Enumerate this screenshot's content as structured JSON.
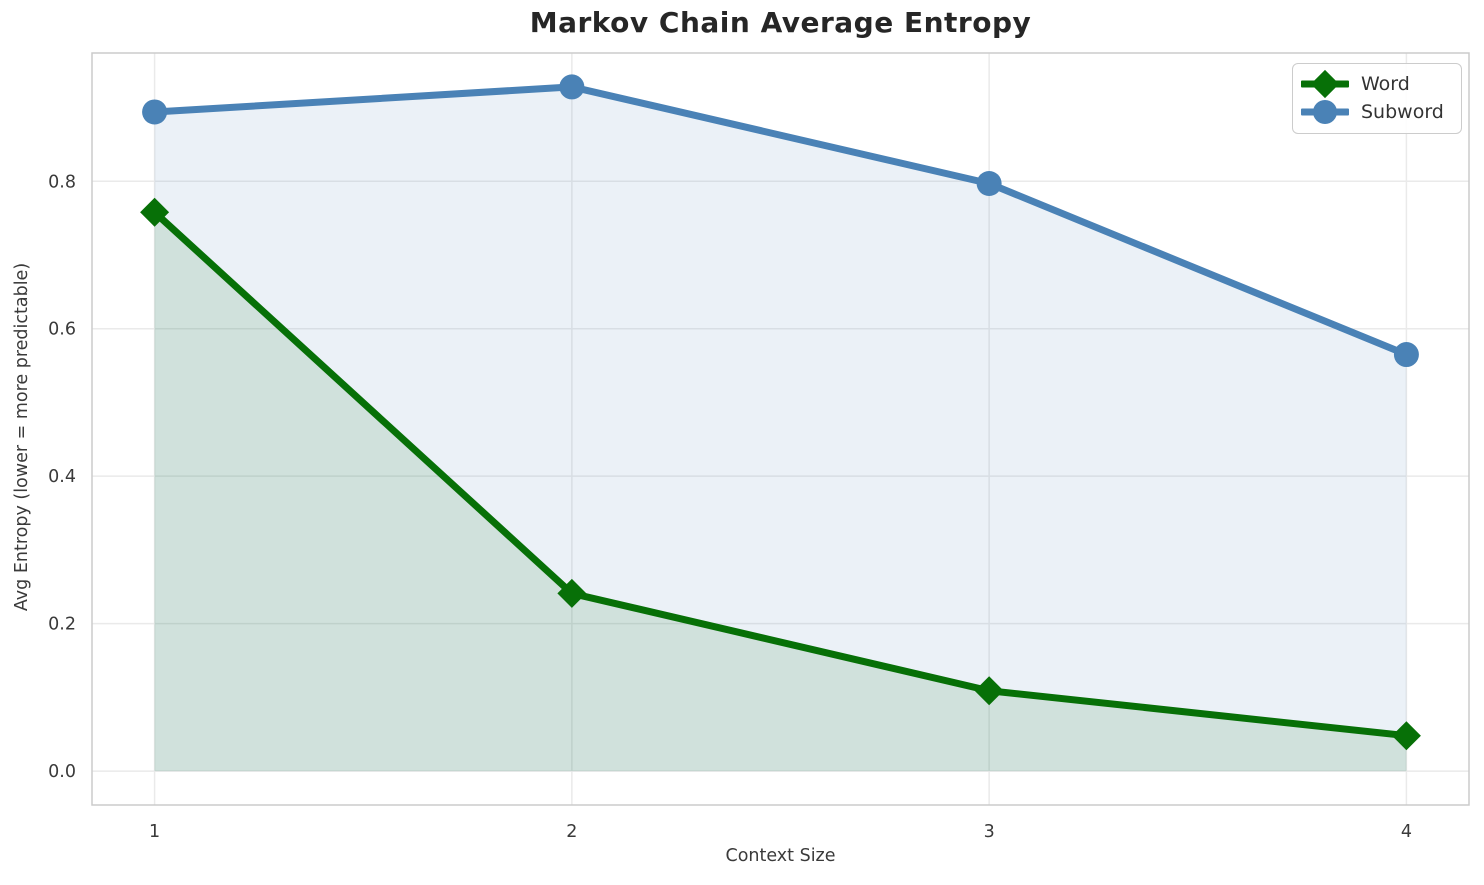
{
  "figure": {
    "background": "#ffffff",
    "plot_border_color": "#cbcbcb",
    "grid_color": "#eaeaea",
    "tick_label_color": "#3a3a3a",
    "title_color": "#262626"
  },
  "chart_data": {
    "type": "line",
    "title": "Markov Chain Average Entropy",
    "xlabel": "Context Size",
    "ylabel": "Avg Entropy (lower = more predictable)",
    "x": [
      1,
      2,
      3,
      4
    ],
    "xlim": [
      0.85,
      4.15
    ],
    "ylim": [
      -0.046,
      0.974
    ],
    "xtick_values": [
      1,
      2,
      3,
      4
    ],
    "xtick_labels": [
      "1",
      "2",
      "3",
      "4"
    ],
    "ytick_values": [
      0.0,
      0.2,
      0.4,
      0.6,
      0.8
    ],
    "ytick_labels": [
      "0.0",
      "0.2",
      "0.4",
      "0.6",
      "0.8"
    ],
    "grid": true,
    "legend_position": "upper right",
    "series": [
      {
        "name": "Word",
        "color": "#077007",
        "marker": "diamond",
        "fill_to_zero": true,
        "fill_opacity": 0.12,
        "values": [
          0.758,
          0.241,
          0.109,
          0.048
        ]
      },
      {
        "name": "Subword",
        "color": "#4a82b6",
        "marker": "circle",
        "fill_to_zero": true,
        "fill_opacity": 0.11,
        "values": [
          0.894,
          0.928,
          0.797,
          0.565
        ]
      }
    ]
  }
}
